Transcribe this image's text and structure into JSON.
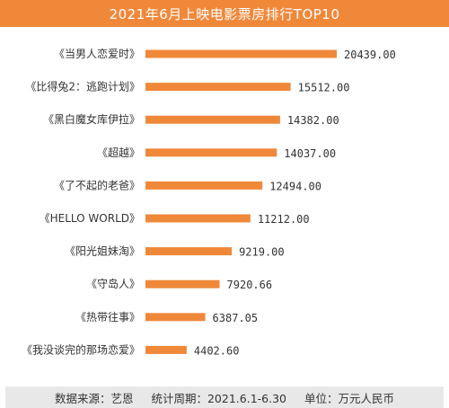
{
  "colors": {
    "accent": "#f0883a",
    "footer_bg": "#e8e8e8",
    "text": "#333333"
  },
  "footer": {
    "source": "数据来源：艺恩",
    "period": "统计周期：2021.6.1-6.30",
    "unit": "单位：万元人民币"
  },
  "chart_data": {
    "type": "bar",
    "orientation": "horizontal",
    "title": "2021年6月上映电影票房排行TOP10",
    "categories": [
      "《当男人恋爱时》",
      "《比得兔2：逃跑计划》",
      "《黑白魔女库伊拉》",
      "《超越》",
      "《了不起的老爸》",
      "《HELLO WORLD》",
      "《阳光姐妹淘》",
      "《守岛人》",
      "《热带往事》",
      "《我没谈完的那场恋爱》"
    ],
    "values": [
      20439.0,
      15512.0,
      14382.0,
      14037.0,
      12494.0,
      11212.0,
      9219.0,
      7920.66,
      6387.05,
      4402.6
    ],
    "value_labels": [
      "20439.00",
      "15512.00",
      "14382.00",
      "14037.00",
      "12494.00",
      "11212.00",
      "9219.00",
      "7920.66",
      "6387.05",
      "4402.60"
    ],
    "xlim": [
      0,
      20439
    ],
    "grid": false,
    "legend": "none"
  }
}
